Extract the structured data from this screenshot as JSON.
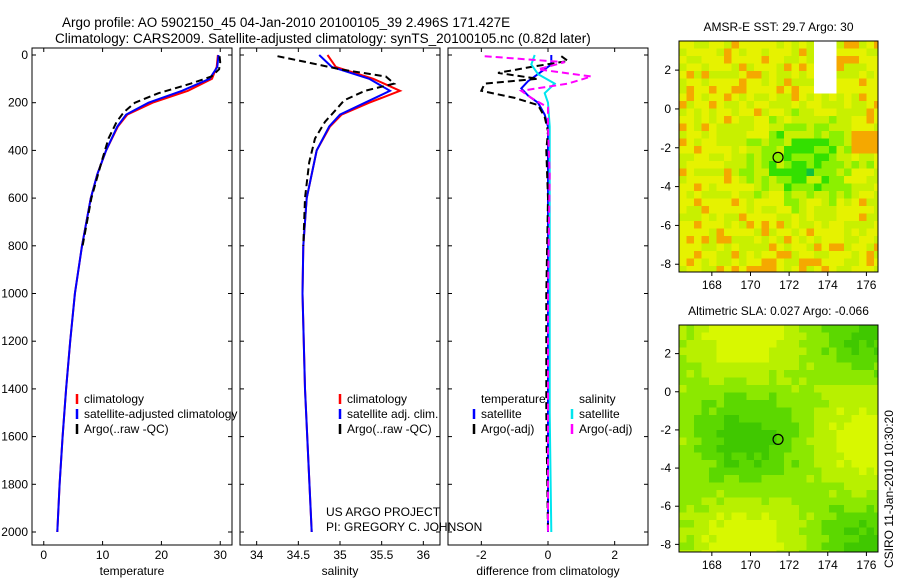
{
  "title_line1": "Argo profile: AO 5902150_45 04-Jan-2010 20100105_39 2.496S 171.427E",
  "title_line2": "Climatology: CARS2009. Satellite-adjusted climatology: synTS_20100105.nc (0.82d later)",
  "credit_line1": "US ARGO PROJECT",
  "credit_line2": "PI: GREGORY C. JOHNSON",
  "side_stamp": "CSIRO 11-Jan-2010 10:30:20",
  "colors": {
    "climatology": "#ff0000",
    "satellite": "#0000ff",
    "argo": "#000000",
    "sal_sat": "#00e5ee",
    "sal_argo": "#ff00ff"
  },
  "chart_data": [
    {
      "type": "line",
      "xlabel": "temperature",
      "ylabel": "",
      "xlim": [
        -2,
        32
      ],
      "ylim": [
        2050,
        -20
      ],
      "xticks": [
        "0",
        "10",
        "20",
        "30"
      ],
      "xtick_values": [
        0,
        10,
        20,
        30
      ],
      "yticks": [
        "0",
        "200",
        "400",
        "600",
        "800",
        "1000",
        "1200",
        "1400",
        "1600",
        "1800",
        "2000"
      ],
      "legend": [
        "climatology",
        "satellite-adjusted climatology",
        "Argo(..raw -QC)"
      ],
      "series": [
        {
          "name": "climatology",
          "style": "red",
          "depth": [
            0,
            50,
            100,
            150,
            200,
            250,
            300,
            400,
            500,
            600,
            800,
            1000,
            1200,
            1400,
            1600,
            1800,
            2000
          ],
          "values": [
            29.6,
            29.4,
            28.6,
            24.5,
            18.5,
            14.2,
            12.6,
            10.6,
            9.1,
            8.0,
            6.5,
            5.3,
            4.5,
            3.8,
            3.2,
            2.7,
            2.3
          ]
        },
        {
          "name": "satellite-adjusted climatology",
          "style": "blue",
          "depth": [
            0,
            50,
            100,
            150,
            200,
            250,
            300,
            400,
            500,
            600,
            800,
            1000,
            1200,
            1400,
            1600,
            1800,
            2000
          ],
          "values": [
            29.7,
            29.5,
            28.2,
            23.5,
            17.8,
            14.0,
            12.5,
            10.6,
            9.1,
            8.0,
            6.5,
            5.3,
            4.5,
            3.8,
            3.2,
            2.7,
            2.3
          ]
        },
        {
          "name": "Argo(..raw -QC)",
          "style": "black-dash",
          "depth": [
            5,
            30,
            60,
            90,
            120,
            160,
            200,
            240,
            280,
            350,
            450,
            600,
            800
          ],
          "values": [
            29.9,
            30.0,
            29.8,
            28.5,
            25.0,
            19.5,
            15.5,
            13.6,
            12.4,
            11.0,
            9.8,
            8.1,
            6.6
          ]
        }
      ]
    },
    {
      "type": "line",
      "xlabel": "salinity",
      "xlim": [
        33.8,
        36.2
      ],
      "ylim": [
        2050,
        -20
      ],
      "xticks": [
        "34",
        "34.5",
        "35",
        "35.5",
        "36"
      ],
      "xtick_values": [
        34,
        34.5,
        35,
        35.5,
        36
      ],
      "yticks": [
        "0",
        "200",
        "400",
        "600",
        "800",
        "1000",
        "1200",
        "1400",
        "1600",
        "1800",
        "2000"
      ],
      "legend": [
        "climatology",
        "satellite adj. clim.",
        "Argo(..raw -QC)"
      ],
      "series": [
        {
          "name": "climatology",
          "style": "red",
          "depth": [
            0,
            50,
            100,
            150,
            200,
            250,
            300,
            400,
            600,
            800,
            1000,
            1400,
            2000
          ],
          "values": [
            34.85,
            34.95,
            35.4,
            35.72,
            35.35,
            35.02,
            34.88,
            34.72,
            34.6,
            34.56,
            34.55,
            34.58,
            34.66
          ]
        },
        {
          "name": "satellite adj. clim.",
          "style": "blue",
          "depth": [
            0,
            50,
            100,
            150,
            200,
            250,
            300,
            400,
            600,
            800,
            1000,
            1400,
            2000
          ],
          "values": [
            34.75,
            34.9,
            35.35,
            35.6,
            35.3,
            35.0,
            34.87,
            34.72,
            34.6,
            34.56,
            34.55,
            34.58,
            34.66
          ]
        },
        {
          "name": "Argo(..raw -QC)",
          "style": "black-dash",
          "depth": [
            5,
            30,
            60,
            90,
            120,
            150,
            190,
            230,
            280,
            350,
            450,
            600,
            800
          ],
          "values": [
            34.25,
            34.6,
            35.0,
            35.55,
            35.65,
            35.3,
            35.05,
            34.95,
            34.82,
            34.7,
            34.63,
            34.58,
            34.56
          ]
        }
      ]
    },
    {
      "type": "line",
      "xlabel": "difference from climatology",
      "xlim": [
        -3,
        3
      ],
      "ylim": [
        2050,
        -20
      ],
      "xticks": [
        "-2",
        "0",
        "2"
      ],
      "xtick_values": [
        -2,
        0,
        2
      ],
      "yticks": [
        "0",
        "200",
        "400",
        "600",
        "800",
        "1000",
        "1200",
        "1400",
        "1600",
        "1800",
        "2000"
      ],
      "legend_headers": [
        "temperature",
        "salinity"
      ],
      "legend": [
        "satellite",
        "Argo(-adj)",
        "satellite",
        "Argo(-adj)"
      ],
      "series": [
        {
          "name": "temperature satellite",
          "style": "blue",
          "depth": [
            0,
            40,
            80,
            110,
            140,
            170,
            200,
            250,
            300,
            500,
            1000,
            1500,
            2000
          ],
          "values": [
            0.1,
            0.1,
            -0.3,
            -0.6,
            -0.8,
            -0.6,
            -0.3,
            -0.1,
            0,
            0,
            0,
            0,
            0
          ]
        },
        {
          "name": "temperature Argo(-adj)",
          "style": "black-dash",
          "depth": [
            5,
            25,
            50,
            75,
            100,
            120,
            150,
            180,
            210,
            260,
            320,
            400,
            600,
            1000,
            1500,
            2000
          ],
          "values": [
            0.4,
            0.6,
            -0.5,
            -1.5,
            -0.3,
            -1.9,
            -2.0,
            -1.0,
            -0.3,
            -0.1,
            0,
            -0.05,
            0,
            -0.05,
            -0.05,
            0
          ]
        },
        {
          "name": "salinity satellite",
          "style": "cyan",
          "depth": [
            0,
            40,
            80,
            120,
            160,
            200,
            300,
            500,
            1000,
            1500,
            2000
          ],
          "values": [
            -0.4,
            -0.5,
            -0.3,
            0.2,
            -0.1,
            0,
            0.05,
            0.05,
            0.05,
            0.05,
            0.1
          ]
        },
        {
          "name": "salinity Argo(-adj)",
          "style": "magenta-dash",
          "depth": [
            5,
            30,
            60,
            90,
            120,
            150,
            180,
            220,
            300,
            500,
            1000,
            1500,
            2000
          ],
          "values": [
            -1.9,
            0.5,
            -0.3,
            1.3,
            0.6,
            -0.8,
            -0.5,
            0,
            0,
            0.05,
            0,
            0,
            0
          ]
        }
      ]
    }
  ],
  "maps": [
    {
      "title": "AMSR-E SST: 29.7 Argo: 30",
      "xticks": [
        "168",
        "170",
        "172",
        "174",
        "176"
      ],
      "yticks": [
        "2",
        "0",
        "-2",
        "-4",
        "-6",
        "-8"
      ],
      "float_lon": 171.427,
      "float_lat": -2.496
    },
    {
      "title": "Altimetric SLA: 0.027 Argo: -0.066",
      "xticks": [
        "168",
        "170",
        "172",
        "174",
        "176"
      ],
      "yticks": [
        "2",
        "0",
        "-2",
        "-4",
        "-6",
        "-8"
      ],
      "float_lon": 171.427,
      "float_lat": -2.496
    }
  ]
}
